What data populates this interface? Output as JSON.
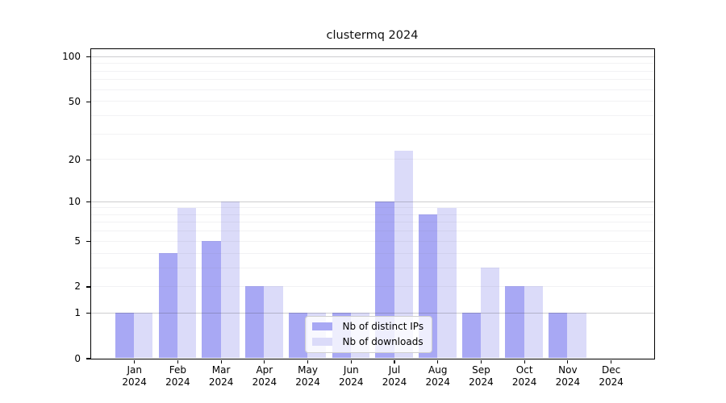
{
  "chart_data": {
    "type": "bar",
    "title": "clustermq 2024",
    "categories": [
      "Jan",
      "Feb",
      "Mar",
      "Apr",
      "May",
      "Jun",
      "Jul",
      "Aug",
      "Sep",
      "Oct",
      "Nov",
      "Dec"
    ],
    "year_label": "2024",
    "series": [
      {
        "name": "Nb of distinct IPs",
        "color": "#a8a8f4",
        "values": [
          1,
          4,
          5,
          2,
          1,
          1,
          10,
          8,
          1,
          2,
          1,
          0
        ]
      },
      {
        "name": "Nb of downloads",
        "color": "#dbdbf9",
        "values": [
          1,
          9,
          10,
          2,
          1,
          1,
          23,
          9,
          3,
          2,
          1,
          0
        ]
      }
    ],
    "xlabel": "",
    "ylabel": "",
    "yscale": "log1p",
    "ylim": [
      0,
      113
    ],
    "ytick_labels": [
      "100",
      "50",
      "20",
      "10",
      "5",
      "2",
      "1",
      "0"
    ],
    "ytick_values": [
      100,
      50,
      20,
      10,
      5,
      2,
      1,
      0
    ],
    "minor_grid_values": [
      2,
      3,
      4,
      5,
      6,
      7,
      8,
      9,
      20,
      30,
      40,
      50,
      60,
      70,
      80,
      90
    ],
    "major_grid_values": [
      1,
      10,
      100
    ],
    "grid": true,
    "legend_position": "lower center"
  }
}
